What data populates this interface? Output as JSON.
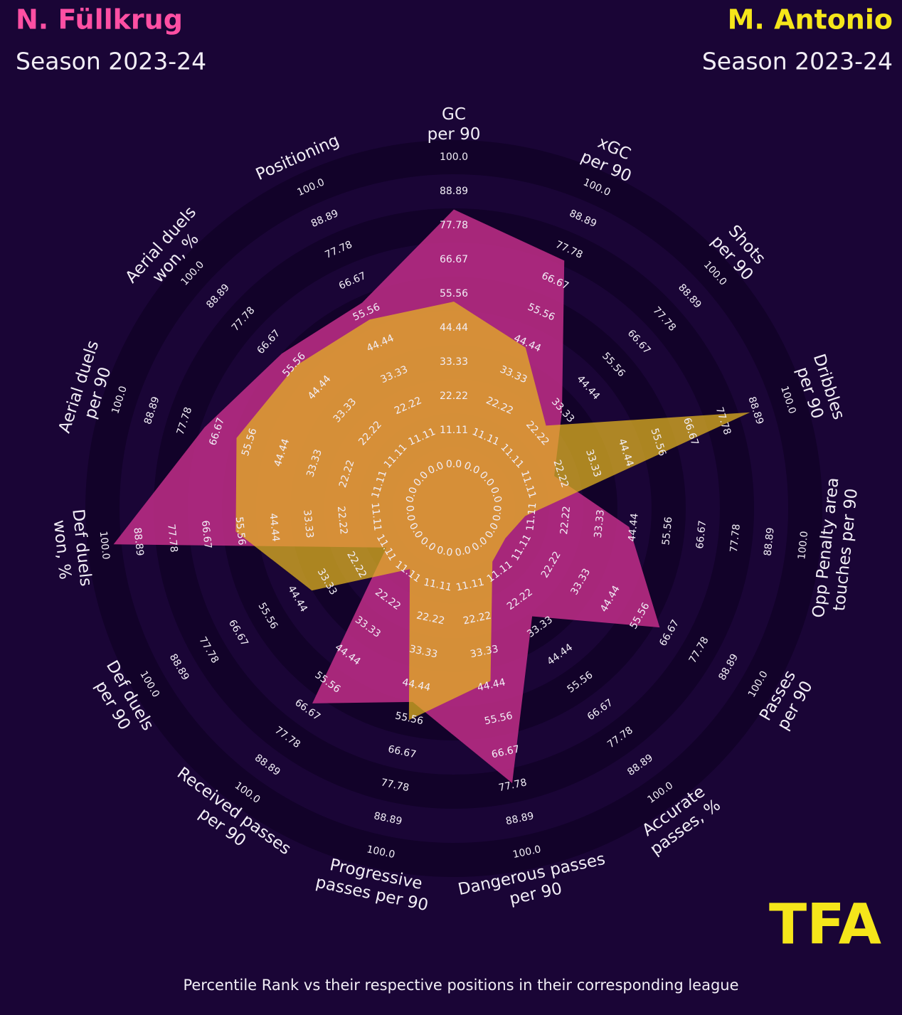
{
  "chart_data": {
    "type": "radar",
    "caption": "Percentile Rank vs their respective positions in their corresponding league",
    "logo": "TFA",
    "categories": [
      "GC\nper 90",
      "xGC\nper 90",
      "Shots\nper 90",
      "Dribbles\nper 90",
      "Opp Penalty area\ntouches per 90",
      "Passes\nper 90",
      "Accurate\npasses, %",
      "Dangerous passes\nper 90",
      "Progressive\npasses per 90",
      "Received passes\nper 90",
      "Def duels\nper 90",
      "Def duels\nwon, %",
      "Aerial duels\nper 90",
      "Aerial duels\nwon, %",
      "Positioning"
    ],
    "series": [
      {
        "name": "N. Füllkrug",
        "subtitle": "Season 2023-24",
        "color": "#c8308c",
        "values": [
          83,
          74,
          33,
          20,
          43,
          63,
          29,
          77,
          50,
          64,
          11,
          97,
          71,
          61,
          59
        ]
      },
      {
        "name": "M. Antonio",
        "subtitle": "Season 2023-24",
        "color": "#e8b81e",
        "values": [
          53,
          43,
          26,
          87,
          9,
          5,
          7,
          43,
          56,
          10,
          39,
          57,
          60,
          55,
          53
        ]
      }
    ],
    "rlim": [
      0,
      100
    ],
    "rticks": [
      {
        "value": 0,
        "label": "0.0"
      },
      11.11,
      22.22,
      33.33,
      44.44,
      55.56,
      66.67,
      77.78,
      88.89,
      {
        "value": 100,
        "label": "100.0"
      }
    ]
  }
}
